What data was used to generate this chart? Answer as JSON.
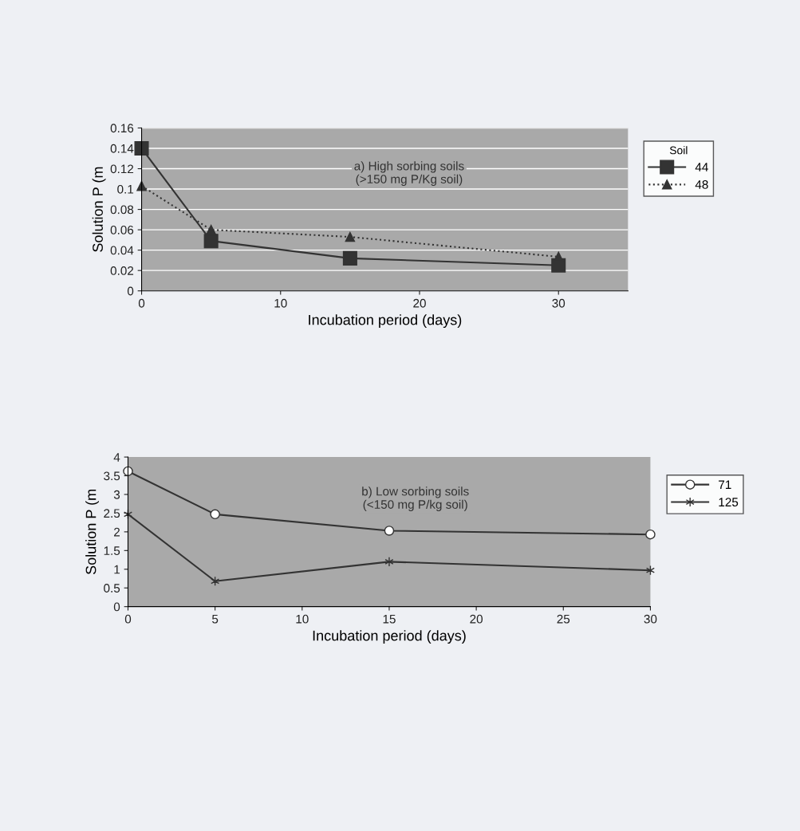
{
  "chart_data": [
    {
      "type": "line",
      "xlabel": "Incubation period (days)",
      "ylabel": "Solution P (m",
      "legend_title": "Soil",
      "annotations": [
        "a) High sorbing soils\n(>150 mg P/Kg soil)"
      ],
      "x": [
        0,
        5,
        15,
        30
      ],
      "series": [
        {
          "name": "44",
          "color": "#333333",
          "values": [
            0.14,
            0.049,
            0.032,
            0.025
          ],
          "marker": "square",
          "line_style": "solid"
        },
        {
          "name": "48",
          "color": "#333333",
          "values": [
            0.103,
            0.06,
            0.053,
            0.0335
          ],
          "marker": "triangle",
          "line_style": "dotted"
        }
      ],
      "xlim": [
        0,
        35
      ],
      "xticks": [
        0,
        10,
        20,
        30
      ],
      "ylim": [
        0,
        0.16
      ],
      "yticks": [
        0,
        0.02,
        0.04,
        0.06,
        0.08,
        0.1,
        0.12,
        0.14,
        0.16
      ],
      "grid": "y",
      "legend": "right"
    },
    {
      "type": "line",
      "xlabel": "Incubation period (days)",
      "ylabel": "Solution P (m",
      "annotations": [
        "b) Low sorbing soils\n(<150 mg P/kg soil)"
      ],
      "x": [
        0,
        5,
        15,
        30
      ],
      "series": [
        {
          "name": "71",
          "color": "#333333",
          "values": [
            3.62,
            2.47,
            2.03,
            1.93
          ],
          "marker": "circle",
          "line_style": "solid"
        },
        {
          "name": "125",
          "color": "#333333",
          "values": [
            2.47,
            0.68,
            1.2,
            0.97
          ],
          "marker": "cross",
          "line_style": "solid"
        }
      ],
      "xlim": [
        0,
        30
      ],
      "xticks": [
        0,
        5,
        10,
        15,
        20,
        25,
        30
      ],
      "ylim": [
        0,
        4
      ],
      "yticks": [
        0,
        0.5,
        1,
        1.5,
        2,
        2.5,
        3,
        3.5,
        4
      ],
      "grid": false,
      "legend": "right"
    }
  ]
}
